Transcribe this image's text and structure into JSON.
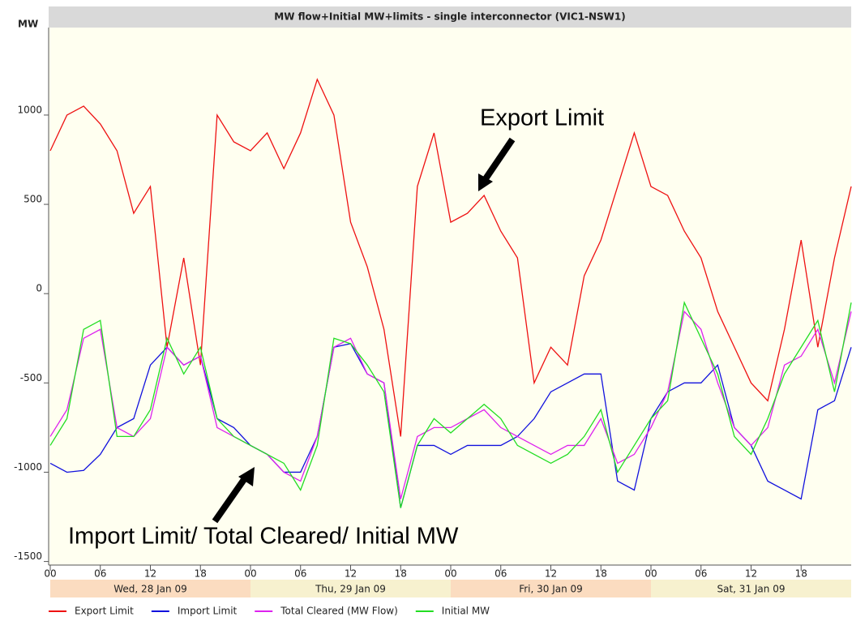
{
  "chart_data": {
    "type": "line",
    "title": "MW flow+Initial MW+limits - single interconnector (VIC1-NSW1)",
    "y_label": "MW",
    "x": [
      0,
      2,
      4,
      6,
      8,
      10,
      12,
      14,
      16,
      18,
      20,
      22,
      24,
      26,
      28,
      30,
      32,
      34,
      36,
      38,
      40,
      42,
      44,
      46,
      48,
      50,
      52,
      54,
      56,
      58,
      60,
      62,
      64,
      66,
      68,
      70,
      72,
      74,
      76,
      78,
      80,
      82,
      84,
      86,
      88,
      90,
      92,
      94,
      96
    ],
    "xlim": [
      0,
      96
    ],
    "xticks": [
      {
        "value": 0,
        "label": "00"
      },
      {
        "value": 6,
        "label": "06"
      },
      {
        "value": 12,
        "label": "12"
      },
      {
        "value": 18,
        "label": "18"
      },
      {
        "value": 24,
        "label": "00"
      },
      {
        "value": 30,
        "label": "06"
      },
      {
        "value": 36,
        "label": "12"
      },
      {
        "value": 42,
        "label": "18"
      },
      {
        "value": 48,
        "label": "00"
      },
      {
        "value": 54,
        "label": "06"
      },
      {
        "value": 60,
        "label": "12"
      },
      {
        "value": 66,
        "label": "18"
      },
      {
        "value": 72,
        "label": "00"
      },
      {
        "value": 78,
        "label": "06"
      },
      {
        "value": 84,
        "label": "12"
      },
      {
        "value": 90,
        "label": "18"
      }
    ],
    "days": [
      "Wed, 28 Jan 09",
      "Thu, 29 Jan 09",
      "Fri, 30 Jan 09",
      "Sat, 31 Jan 09"
    ],
    "ylim": [
      -1520,
      1490
    ],
    "yticks": [
      -1500,
      -1000,
      -500,
      0,
      500,
      1000
    ],
    "series": [
      {
        "name": "Export Limit",
        "color": "#ee1111",
        "values": [
          800,
          1000,
          1050,
          950,
          800,
          450,
          600,
          -300,
          200,
          -400,
          1000,
          850,
          800,
          900,
          700,
          900,
          1200,
          1000,
          400,
          150,
          -200,
          -800,
          600,
          900,
          400,
          450,
          550,
          350,
          200,
          -500,
          -300,
          -400,
          100,
          300,
          600,
          900,
          600,
          550,
          350,
          200,
          -100,
          -300,
          -500,
          -600,
          -200,
          300,
          -300,
          200,
          600
        ]
      },
      {
        "name": "Import Limit",
        "color": "#1111dd",
        "values": [
          -950,
          -1000,
          -990,
          -900,
          -750,
          -700,
          -400,
          -300,
          -400,
          -350,
          -700,
          -750,
          -850,
          -900,
          -1000,
          -1000,
          -800,
          -300,
          -280,
          -450,
          -500,
          -1200,
          -850,
          -850,
          -900,
          -850,
          -850,
          -850,
          -800,
          -700,
          -550,
          -500,
          -450,
          -450,
          -1050,
          -1100,
          -700,
          -550,
          -500,
          -500,
          -400,
          -750,
          -850,
          -1050,
          -1100,
          -1150,
          -650,
          -600,
          -300
        ]
      },
      {
        "name": "Total Cleared (MW Flow)",
        "color": "#dd22ee",
        "values": [
          -800,
          -650,
          -250,
          -200,
          -750,
          -800,
          -700,
          -300,
          -400,
          -350,
          -750,
          -800,
          -850,
          -900,
          -1000,
          -1050,
          -800,
          -300,
          -250,
          -450,
          -500,
          -1150,
          -800,
          -750,
          -750,
          -700,
          -650,
          -750,
          -800,
          -850,
          -900,
          -850,
          -850,
          -700,
          -950,
          -900,
          -750,
          -550,
          -100,
          -200,
          -500,
          -750,
          -850,
          -750,
          -400,
          -350,
          -200,
          -500,
          -100
        ]
      },
      {
        "name": "Initial MW",
        "color": "#22dd22",
        "values": [
          -850,
          -700,
          -200,
          -150,
          -800,
          -800,
          -650,
          -250,
          -450,
          -300,
          -700,
          -800,
          -850,
          -900,
          -950,
          -1100,
          -850,
          -250,
          -280,
          -400,
          -550,
          -1200,
          -850,
          -700,
          -780,
          -700,
          -620,
          -700,
          -850,
          -900,
          -950,
          -900,
          -800,
          -650,
          -1000,
          -850,
          -700,
          -600,
          -50,
          -250,
          -450,
          -800,
          -900,
          -700,
          -450,
          -300,
          -150,
          -550,
          -50
        ]
      }
    ],
    "annotations": [
      "Export Limit",
      "Import Limit/ Total Cleared/ Initial MW"
    ]
  }
}
